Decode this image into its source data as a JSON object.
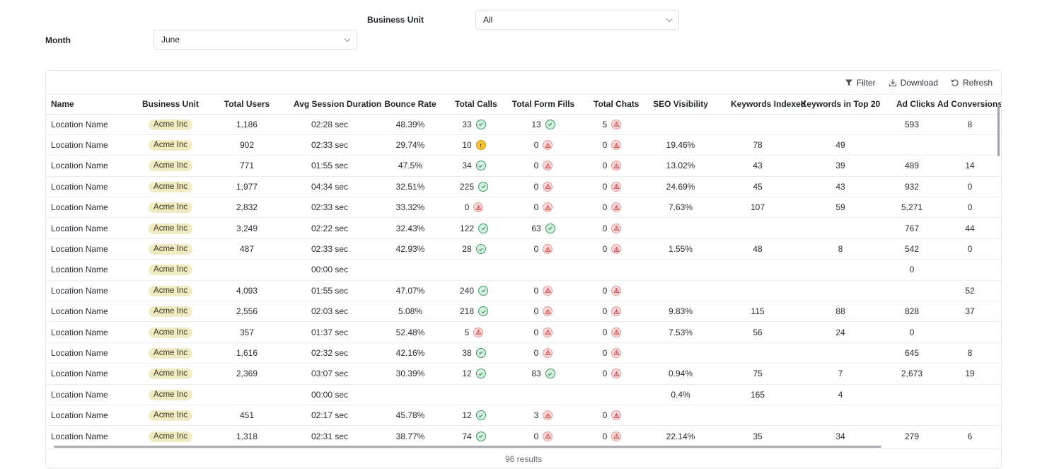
{
  "filters": {
    "business_unit": {
      "label": "Business Unit",
      "value": "All"
    },
    "month": {
      "label": "Month",
      "value": "June"
    }
  },
  "toolbar": {
    "filter": "Filter",
    "download": "Download",
    "refresh": "Refresh"
  },
  "columns": [
    "Name",
    "Business Unit",
    "Total Users",
    "Avg Session Duration",
    "Bounce Rate",
    "Total Calls",
    "Total Form Fills",
    "Total Chats",
    "SEO Visibility",
    "Keywords Indexed",
    "Keywords in Top 20",
    "Ad Clicks",
    "Ad Conversions"
  ],
  "rows": [
    {
      "name": "Location Name",
      "unit": "Acme Inc",
      "users": "1,186",
      "duration": "02:28 sec",
      "bounce": "48.39%",
      "calls": "33",
      "calls_status": "ok",
      "forms": "13",
      "forms_status": "ok",
      "chats": "5",
      "chats_status": "warn",
      "seo": "",
      "kw_indexed": "",
      "kw_top20": "",
      "ad_clicks": "593",
      "ad_conv": "8"
    },
    {
      "name": "Location Name",
      "unit": "Acme Inc",
      "users": "902",
      "duration": "02:33 sec",
      "bounce": "29.74%",
      "calls": "10",
      "calls_status": "caution",
      "forms": "0",
      "forms_status": "warn",
      "chats": "0",
      "chats_status": "warn",
      "seo": "19.46%",
      "kw_indexed": "78",
      "kw_top20": "49",
      "ad_clicks": "",
      "ad_conv": ""
    },
    {
      "name": "Location Name",
      "unit": "Acme Inc",
      "users": "771",
      "duration": "01:55 sec",
      "bounce": "47.5%",
      "calls": "34",
      "calls_status": "ok",
      "forms": "0",
      "forms_status": "warn",
      "chats": "0",
      "chats_status": "warn",
      "seo": "13.02%",
      "kw_indexed": "43",
      "kw_top20": "39",
      "ad_clicks": "489",
      "ad_conv": "14"
    },
    {
      "name": "Location Name",
      "unit": "Acme Inc",
      "users": "1,977",
      "duration": "04:34 sec",
      "bounce": "32.51%",
      "calls": "225",
      "calls_status": "ok",
      "forms": "0",
      "forms_status": "warn",
      "chats": "0",
      "chats_status": "warn",
      "seo": "24.69%",
      "kw_indexed": "45",
      "kw_top20": "43",
      "ad_clicks": "932",
      "ad_conv": "0"
    },
    {
      "name": "Location Name",
      "unit": "Acme Inc",
      "users": "2,832",
      "duration": "02:33 sec",
      "bounce": "33.32%",
      "calls": "0",
      "calls_status": "warn",
      "forms": "0",
      "forms_status": "warn",
      "chats": "0",
      "chats_status": "warn",
      "seo": "7.63%",
      "kw_indexed": "107",
      "kw_top20": "59",
      "ad_clicks": "5,271",
      "ad_conv": "0"
    },
    {
      "name": "Location Name",
      "unit": "Acme Inc",
      "users": "3,249",
      "duration": "02:22 sec",
      "bounce": "32.43%",
      "calls": "122",
      "calls_status": "ok",
      "forms": "63",
      "forms_status": "ok",
      "chats": "0",
      "chats_status": "warn",
      "seo": "",
      "kw_indexed": "",
      "kw_top20": "",
      "ad_clicks": "767",
      "ad_conv": "44"
    },
    {
      "name": "Location Name",
      "unit": "Acme Inc",
      "users": "487",
      "duration": "02:33 sec",
      "bounce": "42.93%",
      "calls": "28",
      "calls_status": "ok",
      "forms": "0",
      "forms_status": "warn",
      "chats": "0",
      "chats_status": "warn",
      "seo": "1.55%",
      "kw_indexed": "48",
      "kw_top20": "8",
      "ad_clicks": "542",
      "ad_conv": "0"
    },
    {
      "name": "Location Name",
      "unit": "Acme Inc",
      "users": "",
      "duration": "00:00 sec",
      "bounce": "",
      "calls": "",
      "calls_status": "",
      "forms": "",
      "forms_status": "",
      "chats": "",
      "chats_status": "",
      "seo": "",
      "kw_indexed": "",
      "kw_top20": "",
      "ad_clicks": "0",
      "ad_conv": ""
    },
    {
      "name": "Location Name",
      "unit": "Acme Inc",
      "users": "4,093",
      "duration": "01:55 sec",
      "bounce": "47.07%",
      "calls": "240",
      "calls_status": "ok",
      "forms": "0",
      "forms_status": "warn",
      "chats": "0",
      "chats_status": "warn",
      "seo": "",
      "kw_indexed": "",
      "kw_top20": "",
      "ad_clicks": "",
      "ad_conv": "52"
    },
    {
      "name": "Location Name",
      "unit": "Acme Inc",
      "users": "2,556",
      "duration": "02:03 sec",
      "bounce": "5.08%",
      "calls": "218",
      "calls_status": "ok",
      "forms": "0",
      "forms_status": "warn",
      "chats": "0",
      "chats_status": "warn",
      "seo": "9.83%",
      "kw_indexed": "115",
      "kw_top20": "88",
      "ad_clicks": "828",
      "ad_conv": "37"
    },
    {
      "name": "Location Name",
      "unit": "Acme Inc",
      "users": "357",
      "duration": "01:37 sec",
      "bounce": "52.48%",
      "calls": "5",
      "calls_status": "warn",
      "forms": "0",
      "forms_status": "warn",
      "chats": "0",
      "chats_status": "warn",
      "seo": "7.53%",
      "kw_indexed": "56",
      "kw_top20": "24",
      "ad_clicks": "0",
      "ad_conv": ""
    },
    {
      "name": "Location Name",
      "unit": "Acme Inc",
      "users": "1,616",
      "duration": "02:32 sec",
      "bounce": "42.16%",
      "calls": "38",
      "calls_status": "ok",
      "forms": "0",
      "forms_status": "warn",
      "chats": "0",
      "chats_status": "warn",
      "seo": "",
      "kw_indexed": "",
      "kw_top20": "",
      "ad_clicks": "645",
      "ad_conv": "8"
    },
    {
      "name": "Location Name",
      "unit": "Acme Inc",
      "users": "2,369",
      "duration": "03:07 sec",
      "bounce": "30.39%",
      "calls": "12",
      "calls_status": "ok",
      "forms": "83",
      "forms_status": "ok",
      "chats": "0",
      "chats_status": "warn",
      "seo": "0.94%",
      "kw_indexed": "75",
      "kw_top20": "7",
      "ad_clicks": "2,673",
      "ad_conv": "19"
    },
    {
      "name": "Location Name",
      "unit": "Acme Inc",
      "users": "",
      "duration": "00:00 sec",
      "bounce": "",
      "calls": "",
      "calls_status": "",
      "forms": "",
      "forms_status": "",
      "chats": "",
      "chats_status": "",
      "seo": "0.4%",
      "kw_indexed": "165",
      "kw_top20": "4",
      "ad_clicks": "",
      "ad_conv": ""
    },
    {
      "name": "Location Name",
      "unit": "Acme Inc",
      "users": "451",
      "duration": "02:17 sec",
      "bounce": "45.78%",
      "calls": "12",
      "calls_status": "ok",
      "forms": "3",
      "forms_status": "warn",
      "chats": "0",
      "chats_status": "warn",
      "seo": "",
      "kw_indexed": "",
      "kw_top20": "",
      "ad_clicks": "",
      "ad_conv": ""
    },
    {
      "name": "Location Name",
      "unit": "Acme Inc",
      "users": "1,318",
      "duration": "02:31 sec",
      "bounce": "38.77%",
      "calls": "74",
      "calls_status": "ok",
      "forms": "0",
      "forms_status": "warn",
      "chats": "0",
      "chats_status": "warn",
      "seo": "22.14%",
      "kw_indexed": "35",
      "kw_top20": "34",
      "ad_clicks": "279",
      "ad_conv": "6"
    }
  ],
  "status_colors": {
    "ok": "#3d9a64",
    "warn": "#d64545",
    "caution": "#c99200"
  },
  "footer": {
    "results": "96 results"
  }
}
